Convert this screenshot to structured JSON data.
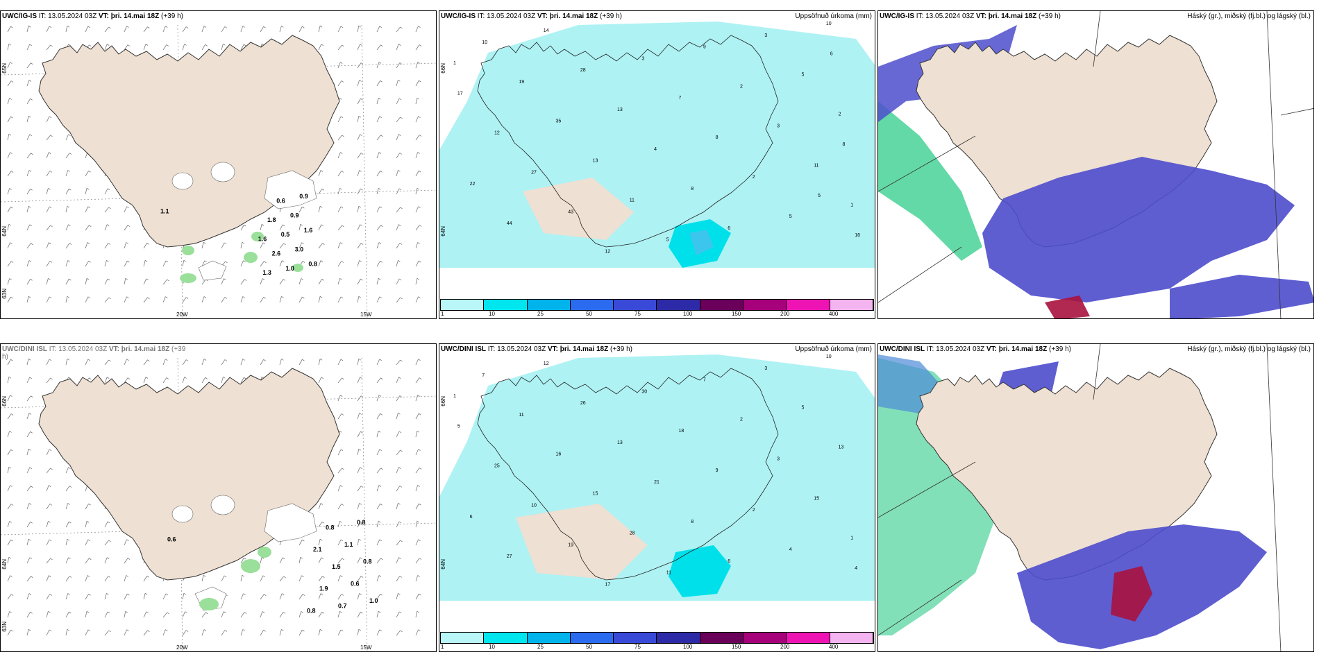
{
  "panels": [
    {
      "header_model": "UWC/IG-IS",
      "header_it": " IT: 13.05.2024 03Z ",
      "header_vt_label": "VT:",
      "header_vt": " þri. 14.mai 18Z",
      "header_lead": " (+39 h)",
      "right_title": "",
      "lon_labels": [
        "20W",
        "15W"
      ],
      "lat_labels": [
        "65N",
        "64N",
        "63N"
      ],
      "values": [
        "1.1",
        "0.8",
        "1.6",
        "0.9",
        "3.0",
        "0.9",
        "1.0",
        "0.5",
        "0.6",
        "2.6",
        "1.8",
        "1.3",
        "1.6"
      ]
    },
    {
      "header_model": "UWC/IG-IS",
      "header_it": " IT: 13.05.2024 03Z ",
      "header_vt_label": "VT:",
      "header_vt": " þri. 14.mai 18Z",
      "header_lead": " (+39 h)",
      "right_title": "Uppsöfnuð úrkoma (mm)",
      "lat_labels": [
        "66N",
        "64N"
      ],
      "values": [
        "1",
        "1",
        "2",
        "10",
        "11",
        "5",
        "5",
        "3",
        "3",
        "2",
        "2",
        "6",
        "8",
        "9",
        "8",
        "7",
        "5",
        "4",
        "3",
        "11",
        "13",
        "12",
        "13",
        "28",
        "43",
        "35",
        "14",
        "27",
        "19",
        "44",
        "12",
        "10",
        "22",
        "17",
        "16",
        "8",
        "6",
        "5"
      ]
    },
    {
      "header_model": "UWC/IG-IS",
      "header_it": " IT: 13.05.2024 03Z ",
      "header_vt_label": "VT:",
      "header_vt": " þri. 14.mai 18Z",
      "header_lead": " (+39 h)",
      "right_title": "Háský (gr.), miðský (fj.bl.) og lágský (bl.)"
    },
    {
      "header_model": "UWC/DINI ISL",
      "header_it": " IT: 13.05.2024 03Z ",
      "header_vt_label": "VT:",
      "header_vt": " þri. 14.mai 18Z",
      "header_lead": " (+39",
      "header_wrap": "h)",
      "right_title": "",
      "lon_labels": [
        "20W",
        "15W"
      ],
      "lat_labels": [
        "66N",
        "64N",
        "63N"
      ],
      "values": [
        "0.6",
        "1.0",
        "0.8",
        "0.8",
        "0.6",
        "1.1",
        "0.7",
        "1.5",
        "0.8",
        "1.9",
        "2.1",
        "0.8"
      ]
    },
    {
      "header_model": "UWC/DINI ISL",
      "header_it": " IT: 13.05.2024 03Z ",
      "header_vt_label": "VT:",
      "header_vt": " þri. 14.mai 18Z",
      "header_lead": " (+39 h)",
      "right_title": "Uppsöfnuð úrkoma (mm)",
      "lat_labels": [
        "66N",
        "64N"
      ],
      "values": [
        "1",
        "1",
        "13",
        "10",
        "15",
        "5",
        "4",
        "3",
        "3",
        "2",
        "2",
        "6",
        "9",
        "7",
        "8",
        "18",
        "11",
        "21",
        "30",
        "28",
        "13",
        "17",
        "15",
        "26",
        "19",
        "16",
        "12",
        "10",
        "11",
        "27",
        "25",
        "7",
        "6",
        "5",
        "4"
      ]
    },
    {
      "header_model": "UWC/DINI ISL",
      "header_it": " IT: 13.05.2024 03Z ",
      "header_vt_label": "VT:",
      "header_vt": " þri. 14.mai 18Z",
      "header_lead": " (+39 h)",
      "right_title": "Háský (gr.), miðský (fj.bl.) og lágský (bl.)"
    }
  ],
  "legend": {
    "ticks": [
      "1",
      "10",
      "25",
      "50",
      "75",
      "100",
      "150",
      "200",
      "400"
    ],
    "colors": [
      "#b9f6f7",
      "#00e6ee",
      "#00b3ea",
      "#2b6bf0",
      "#3a4ad8",
      "#2d2aa8",
      "#6a005a",
      "#a6007a",
      "#ee14b4",
      "#f4b4f0"
    ]
  },
  "colors": {
    "land": "#eee0d2",
    "sea": "#ffffff",
    "precip_light": "#aef2f4",
    "precip_mid": "#00e0ea",
    "cloud_low": "#4d4dcc",
    "cloud_mid": "#2ecc88",
    "cloud_high": "#a8123e",
    "green_precip": "#1a6e1a"
  }
}
